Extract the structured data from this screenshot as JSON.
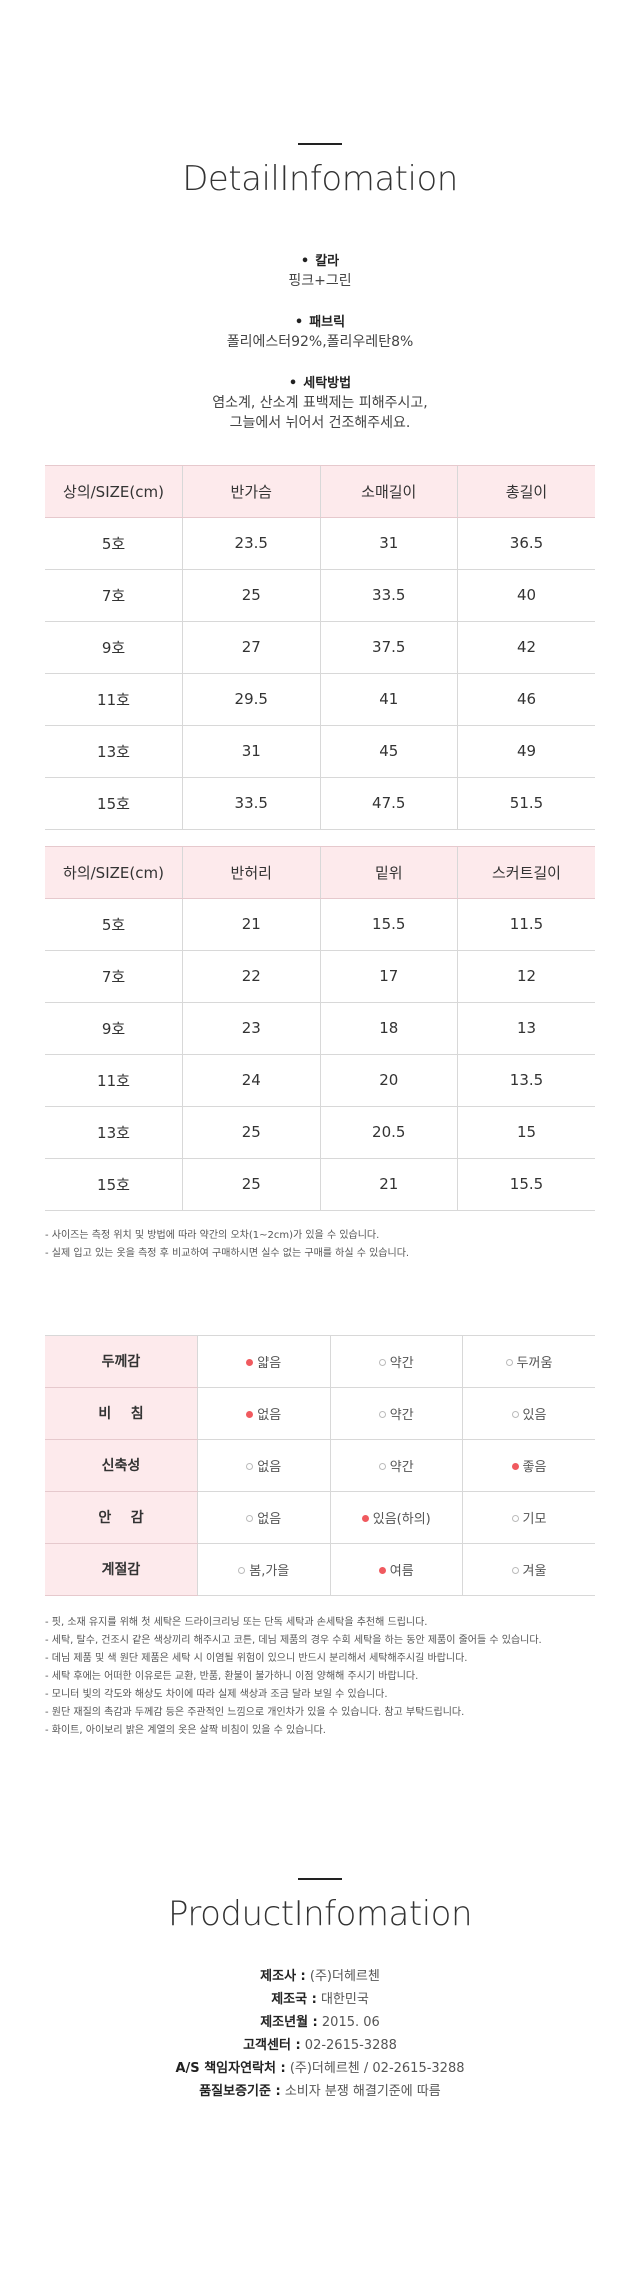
{
  "detail": {
    "title": "DetailInfomation",
    "items": [
      {
        "label": "칼라",
        "value": "핑크+그린"
      },
      {
        "label": "패브릭",
        "value": "폴리에스터92%,폴리우레탄8%"
      },
      {
        "label": "세탁방법",
        "value": "염소계, 산소계 표백제는 피해주시고,\n그늘에서 뉘어서 건조해주세요."
      }
    ],
    "bullet": "•"
  },
  "top_table": {
    "headers": [
      "상의/SIZE(cm)",
      "반가슴",
      "소매길이",
      "총길이"
    ],
    "rows": [
      [
        "5호",
        "23.5",
        "31",
        "36.5"
      ],
      [
        "7호",
        "25",
        "33.5",
        "40"
      ],
      [
        "9호",
        "27",
        "37.5",
        "42"
      ],
      [
        "11호",
        "29.5",
        "41",
        "46"
      ],
      [
        "13호",
        "31",
        "45",
        "49"
      ],
      [
        "15호",
        "33.5",
        "47.5",
        "51.5"
      ]
    ]
  },
  "bottom_table": {
    "headers": [
      "하의/SIZE(cm)",
      "반허리",
      "밑위",
      "스커트길이"
    ],
    "rows": [
      [
        "5호",
        "21",
        "15.5",
        "11.5"
      ],
      [
        "7호",
        "22",
        "17",
        "12"
      ],
      [
        "9호",
        "23",
        "18",
        "13"
      ],
      [
        "11호",
        "24",
        "20",
        "13.5"
      ],
      [
        "13호",
        "25",
        "20.5",
        "15"
      ],
      [
        "15호",
        "25",
        "21",
        "15.5"
      ]
    ]
  },
  "size_notes": [
    "- 사이즈는 측정 위치 및 방법에 따라 약간의 오차(1~2cm)가 있을 수 있습니다.",
    "- 실제 입고 있는 옷을 측정 후 비교하여 구매하시면 실수 없는 구매를 하실 수 있습니다."
  ],
  "feel_table": [
    {
      "label": "두께감",
      "options": [
        {
          "text": "얇음",
          "on": true
        },
        {
          "text": "약간",
          "on": false
        },
        {
          "text": "두꺼움",
          "on": false
        }
      ]
    },
    {
      "label": "비    침",
      "options": [
        {
          "text": "없음",
          "on": true
        },
        {
          "text": "약간",
          "on": false
        },
        {
          "text": "있음",
          "on": false
        }
      ]
    },
    {
      "label": "신축성",
      "options": [
        {
          "text": "없음",
          "on": false
        },
        {
          "text": "약간",
          "on": false
        },
        {
          "text": "좋음",
          "on": true
        }
      ]
    },
    {
      "label": "안    감",
      "options": [
        {
          "text": "없음",
          "on": false
        },
        {
          "text": "있음(하의)",
          "on": true
        },
        {
          "text": "기모",
          "on": false
        }
      ]
    },
    {
      "label": "계절감",
      "options": [
        {
          "text": "봄,가을",
          "on": false
        },
        {
          "text": "여름",
          "on": true
        },
        {
          "text": "겨울",
          "on": false
        }
      ]
    }
  ],
  "care_notes": [
    "- 핏, 소재 유지를 위해 첫 세탁은 드라이크리닝 또는 단독 세탁과 손세탁을 추천해 드립니다.",
    "- 세탁, 탈수, 건조시 같은 색상끼리 해주시고 코튼, 데님 제품의 경우 수회 세탁을 하는 동안 제품이 줄어들 수 있습니다.",
    "- 데님 제품 및 색 원단 제품은 세탁 시 이염될 위험이 있으니 반드시 분리해서 세탁해주시길 바랍니다.",
    "- 세탁 후에는 어떠한 이유로든 교환, 반품, 환불이 불가하니 이점 양해해 주시기 바랍니다.",
    "- 모니터 빛의 각도와 해상도 차이에 따라 실제 색상과 조금 달라 보일 수 있습니다.",
    "- 원단 재질의 촉감과 두께감 등은 주관적인 느낌으로 개인차가 있을 수 있습니다. 참고 부탁드립니다.",
    "- 화이트, 아이보리 밝은 계열의 옷은 살짝 비침이 있을 수 있습니다."
  ],
  "product": {
    "title": "ProductInfomation",
    "rows": [
      {
        "label": "제조사 :",
        "value": " (주)더헤르첸"
      },
      {
        "label": "제조국 :",
        "value": " 대한민국"
      },
      {
        "label": "제조년월 :",
        "value": " 2015. 06"
      },
      {
        "label": "고객센터 :",
        "value": " 02-2615-3288"
      },
      {
        "label": "A/S 책임자연락처 :",
        "value": " (주)더헤르첸 / 02-2615-3288"
      },
      {
        "label": "품질보증기준 :",
        "value": " 소비자 분쟁 해결기준에 따름"
      }
    ]
  }
}
